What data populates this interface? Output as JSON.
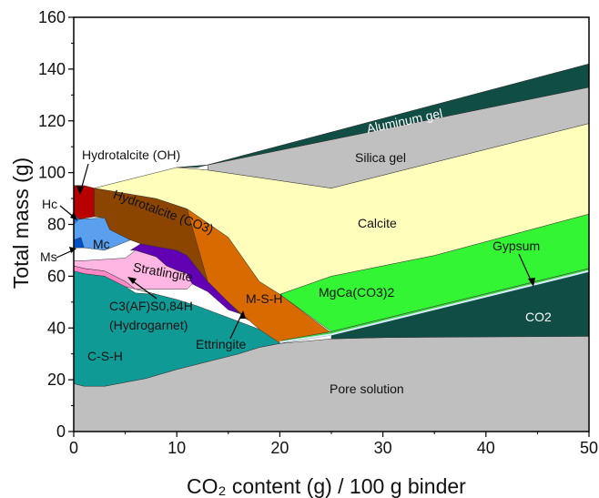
{
  "chart_data": {
    "type": "area",
    "xlabel": "CO₂ content (g) / 100 g binder",
    "ylabel": "Total mass (g)",
    "xlim": [
      0,
      50
    ],
    "ylim": [
      0,
      160
    ],
    "xticks": [
      0,
      10,
      20,
      30,
      40,
      50
    ],
    "yticks": [
      0,
      20,
      40,
      60,
      80,
      100,
      120,
      140,
      160
    ],
    "grid": false,
    "legend": "none (phases labelled directly on areas)",
    "labels": {
      "aluminum_gel": "Aluminum gel",
      "silica_gel": "Silica gel",
      "calcite": "Calcite",
      "hydrotalcite_oh": "Hydrotalcite (OH)",
      "hc": "Hc",
      "mc": "Mc",
      "ms": "Ms",
      "hydrotalcite_co3": "Hydrotalcite (CO3)",
      "stratlingite": "Stratlingite",
      "hydrogarnet": "C3(AF)S0,84H",
      "hydrogarnet_note": "(Hydrogarnet)",
      "ettringite": "Ettringite",
      "msh": "M-S-H",
      "mgcaco3": "MgCa(CO3)2",
      "gypsum": "Gypsum",
      "co2": "CO2",
      "csh": "C-S-H",
      "pore_solution": "Pore solution"
    },
    "series": [
      {
        "name": "Pore solution",
        "color": "#bfbfbf",
        "points": [
          [
            0,
            18.5
          ],
          [
            1,
            17.5
          ],
          [
            3,
            17.5
          ],
          [
            7,
            20.5
          ],
          [
            10,
            24
          ],
          [
            13,
            27
          ],
          [
            16,
            30
          ],
          [
            18,
            32.5
          ],
          [
            20,
            34
          ],
          [
            25,
            35.8
          ],
          [
            30,
            36.3
          ],
          [
            40,
            36.7
          ],
          [
            50,
            36.8
          ]
        ]
      },
      {
        "name": "C-S-H",
        "color": "#0f9a96",
        "points": [
          [
            0,
            62
          ],
          [
            1,
            61
          ],
          [
            3,
            60
          ],
          [
            5,
            56
          ],
          [
            6,
            53.5
          ],
          [
            8,
            53
          ],
          [
            10,
            51
          ],
          [
            12,
            48.5
          ],
          [
            14,
            45.5
          ],
          [
            16,
            42.5
          ],
          [
            18,
            39.5
          ],
          [
            20,
            36
          ]
        ]
      },
      {
        "name": "C3(AF)S0,84H (Hydrogarnet)",
        "color": "#ff89c6",
        "points": [
          [
            0,
            64
          ],
          [
            1,
            63
          ],
          [
            3,
            62
          ],
          [
            5,
            58
          ],
          [
            6,
            55
          ]
        ]
      },
      {
        "name": "Stratlingite",
        "color": "#ffb6e3",
        "points": [
          [
            0,
            66
          ],
          [
            1,
            66
          ],
          [
            3,
            66.5
          ],
          [
            5,
            67
          ],
          [
            6,
            70
          ],
          [
            8,
            67.5
          ],
          [
            9,
            64
          ],
          [
            10.2,
            62
          ],
          [
            11,
            61
          ],
          [
            11.5,
            57
          ]
        ]
      },
      {
        "name": "Ettringite",
        "color": "#6200b3",
        "points": [
          [
            5.5,
            70
          ],
          [
            6.5,
            72.5
          ],
          [
            10,
            70
          ],
          [
            11,
            68
          ],
          [
            13,
            58
          ],
          [
            15,
            50
          ],
          [
            16.5,
            44
          ],
          [
            17,
            43
          ]
        ]
      },
      {
        "name": "Ms",
        "color": "#0050c8",
        "points": [
          [
            0,
            74
          ],
          [
            0.5,
            72
          ],
          [
            1,
            71
          ]
        ]
      },
      {
        "name": "Mc",
        "color": "#5aa0ee",
        "points": [
          [
            0,
            80
          ],
          [
            0.5,
            82
          ],
          [
            3,
            82.5
          ],
          [
            3.5,
            78
          ],
          [
            5.5,
            74
          ]
        ]
      },
      {
        "name": "Hc",
        "color": "#2a79d6",
        "points": [
          [
            0,
            84
          ],
          [
            0.5,
            82
          ]
        ]
      },
      {
        "name": "Hydrotalcite (OH)",
        "color": "#b80000",
        "points": [
          [
            0,
            95
          ],
          [
            1,
            95
          ],
          [
            2,
            94
          ],
          [
            2,
            83
          ],
          [
            0.5,
            82
          ]
        ]
      },
      {
        "name": "Hydrotalcite (CO3)",
        "color": "#8b4500",
        "points": [
          [
            2,
            94
          ],
          [
            8,
            90
          ],
          [
            11,
            86
          ],
          [
            15,
            75
          ],
          [
            18,
            58
          ],
          [
            20,
            53
          ]
        ]
      },
      {
        "name": "M-S-H",
        "color": "#d96a00",
        "points": [
          [
            11,
            86
          ],
          [
            13,
            80
          ],
          [
            15,
            73
          ],
          [
            17,
            68
          ],
          [
            20,
            53
          ],
          [
            25,
            38
          ]
        ]
      },
      {
        "name": "Calcite",
        "color": "#ffffbb",
        "points": [
          [
            2,
            94
          ],
          [
            10,
            102
          ],
          [
            13,
            101
          ],
          [
            25,
            94
          ],
          [
            50,
            119
          ]
        ]
      },
      {
        "name": "MgCa(CO3)2",
        "color": "#33f533",
        "points": [
          [
            20,
            53
          ],
          [
            25,
            60
          ],
          [
            35,
            68
          ],
          [
            50,
            84
          ]
        ]
      },
      {
        "name": "Gypsum",
        "color": "#3ed43e",
        "points": [
          [
            25,
            38
          ],
          [
            50,
            62
          ]
        ]
      },
      {
        "name": "CO2",
        "color": "#0f4d45",
        "points": [
          [
            25,
            38
          ],
          [
            50,
            62
          ]
        ]
      },
      {
        "name": "Silica gel",
        "color": "#c0c0c0",
        "points": [
          [
            13,
            103
          ],
          [
            25,
            95
          ],
          [
            50,
            133
          ]
        ]
      },
      {
        "name": "Aluminum gel",
        "color": "#0f4d45",
        "points": [
          [
            10,
            102
          ],
          [
            13,
            103
          ],
          [
            50,
            142
          ]
        ]
      }
    ]
  }
}
